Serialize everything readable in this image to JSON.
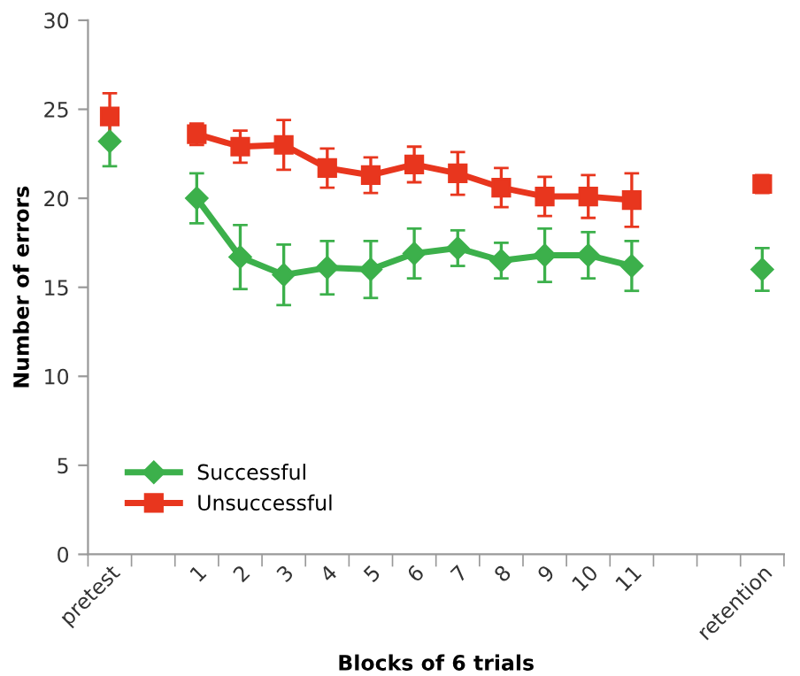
{
  "chart_data": {
    "type": "line",
    "xlabel": "Blocks of 6 trials",
    "ylabel": "Number of errors",
    "categories": [
      "pretest",
      null,
      "1",
      "2",
      "3",
      "4",
      "5",
      "6",
      "7",
      "8",
      "9",
      "10",
      "11",
      null,
      null,
      "retention"
    ],
    "series": [
      {
        "name": "Successful",
        "color": "#3cb04b",
        "marker": "diamond",
        "values": [
          23.2,
          null,
          20.0,
          16.7,
          15.7,
          16.1,
          16.0,
          16.9,
          17.2,
          16.5,
          16.8,
          16.8,
          16.2,
          null,
          null,
          16.0
        ],
        "errors": [
          1.4,
          null,
          1.4,
          1.8,
          1.7,
          1.5,
          1.6,
          1.4,
          1.0,
          1.0,
          1.5,
          1.3,
          1.4,
          null,
          null,
          1.2
        ]
      },
      {
        "name": "Unsuccessful",
        "color": "#e8361e",
        "marker": "square",
        "values": [
          24.6,
          null,
          23.6,
          22.9,
          23.0,
          21.7,
          21.3,
          21.9,
          21.4,
          20.6,
          20.1,
          20.1,
          19.9,
          null,
          null,
          20.8
        ],
        "errors": [
          1.3,
          null,
          0.6,
          0.9,
          1.4,
          1.1,
          1.0,
          1.0,
          1.2,
          1.1,
          1.1,
          1.2,
          1.5,
          null,
          null,
          0.5
        ]
      }
    ],
    "ylim": [
      0,
      30
    ],
    "yticks": [
      0,
      5,
      10,
      15,
      20,
      25,
      30
    ],
    "grid": false,
    "legend": "bottom left"
  }
}
